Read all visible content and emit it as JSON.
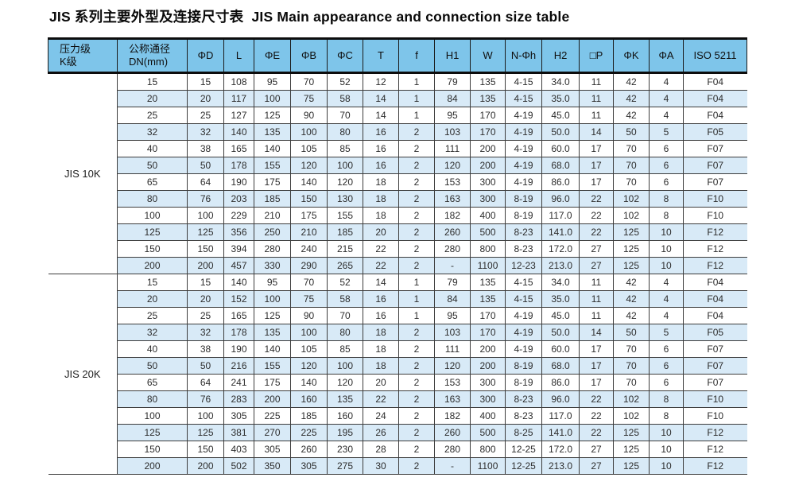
{
  "title": "JIS 系列主要外型及连接尺寸表  JIS Main appearance and connection size table",
  "table": {
    "headers": [
      "压力级\nK级",
      "公称通径\nDN(mm)",
      "ΦD",
      "L",
      "ΦE",
      "ΦB",
      "ΦC",
      "T",
      "f",
      "H1",
      "W",
      "N-Φh",
      "H2",
      "□P",
      "ΦK",
      "ΦA",
      "ISO 5211"
    ],
    "groups": [
      {
        "label": "JIS 10K",
        "rows": [
          [
            "15",
            "15",
            "108",
            "95",
            "70",
            "52",
            "12",
            "1",
            "79",
            "135",
            "4-15",
            "34.0",
            "11",
            "42",
            "4",
            "F04"
          ],
          [
            "20",
            "20",
            "117",
            "100",
            "75",
            "58",
            "14",
            "1",
            "84",
            "135",
            "4-15",
            "35.0",
            "11",
            "42",
            "4",
            "F04"
          ],
          [
            "25",
            "25",
            "127",
            "125",
            "90",
            "70",
            "14",
            "1",
            "95",
            "170",
            "4-19",
            "45.0",
            "11",
            "42",
            "4",
            "F04"
          ],
          [
            "32",
            "32",
            "140",
            "135",
            "100",
            "80",
            "16",
            "2",
            "103",
            "170",
            "4-19",
            "50.0",
            "14",
            "50",
            "5",
            "F05"
          ],
          [
            "40",
            "38",
            "165",
            "140",
            "105",
            "85",
            "16",
            "2",
            "111",
            "200",
            "4-19",
            "60.0",
            "17",
            "70",
            "6",
            "F07"
          ],
          [
            "50",
            "50",
            "178",
            "155",
            "120",
            "100",
            "16",
            "2",
            "120",
            "200",
            "4-19",
            "68.0",
            "17",
            "70",
            "6",
            "F07"
          ],
          [
            "65",
            "64",
            "190",
            "175",
            "140",
            "120",
            "18",
            "2",
            "153",
            "300",
            "4-19",
            "86.0",
            "17",
            "70",
            "6",
            "F07"
          ],
          [
            "80",
            "76",
            "203",
            "185",
            "150",
            "130",
            "18",
            "2",
            "163",
            "300",
            "8-19",
            "96.0",
            "22",
            "102",
            "8",
            "F10"
          ],
          [
            "100",
            "100",
            "229",
            "210",
            "175",
            "155",
            "18",
            "2",
            "182",
            "400",
            "8-19",
            "117.0",
            "22",
            "102",
            "8",
            "F10"
          ],
          [
            "125",
            "125",
            "356",
            "250",
            "210",
            "185",
            "20",
            "2",
            "260",
            "500",
            "8-23",
            "141.0",
            "22",
            "125",
            "10",
            "F12"
          ],
          [
            "150",
            "150",
            "394",
            "280",
            "240",
            "215",
            "22",
            "2",
            "280",
            "800",
            "8-23",
            "172.0",
            "27",
            "125",
            "10",
            "F12"
          ],
          [
            "200",
            "200",
            "457",
            "330",
            "290",
            "265",
            "22",
            "2",
            "-",
            "1100",
            "12-23",
            "213.0",
            "27",
            "125",
            "10",
            "F12"
          ]
        ]
      },
      {
        "label": "JIS 20K",
        "rows": [
          [
            "15",
            "15",
            "140",
            "95",
            "70",
            "52",
            "14",
            "1",
            "79",
            "135",
            "4-15",
            "34.0",
            "11",
            "42",
            "4",
            "F04"
          ],
          [
            "20",
            "20",
            "152",
            "100",
            "75",
            "58",
            "16",
            "1",
            "84",
            "135",
            "4-15",
            "35.0",
            "11",
            "42",
            "4",
            "F04"
          ],
          [
            "25",
            "25",
            "165",
            "125",
            "90",
            "70",
            "16",
            "1",
            "95",
            "170",
            "4-19",
            "45.0",
            "11",
            "42",
            "4",
            "F04"
          ],
          [
            "32",
            "32",
            "178",
            "135",
            "100",
            "80",
            "18",
            "2",
            "103",
            "170",
            "4-19",
            "50.0",
            "14",
            "50",
            "5",
            "F05"
          ],
          [
            "40",
            "38",
            "190",
            "140",
            "105",
            "85",
            "18",
            "2",
            "111",
            "200",
            "4-19",
            "60.0",
            "17",
            "70",
            "6",
            "F07"
          ],
          [
            "50",
            "50",
            "216",
            "155",
            "120",
            "100",
            "18",
            "2",
            "120",
            "200",
            "8-19",
            "68.0",
            "17",
            "70",
            "6",
            "F07"
          ],
          [
            "65",
            "64",
            "241",
            "175",
            "140",
            "120",
            "20",
            "2",
            "153",
            "300",
            "8-19",
            "86.0",
            "17",
            "70",
            "6",
            "F07"
          ],
          [
            "80",
            "76",
            "283",
            "200",
            "160",
            "135",
            "22",
            "2",
            "163",
            "300",
            "8-23",
            "96.0",
            "22",
            "102",
            "8",
            "F10"
          ],
          [
            "100",
            "100",
            "305",
            "225",
            "185",
            "160",
            "24",
            "2",
            "182",
            "400",
            "8-23",
            "117.0",
            "22",
            "102",
            "8",
            "F10"
          ],
          [
            "125",
            "125",
            "381",
            "270",
            "225",
            "195",
            "26",
            "2",
            "260",
            "500",
            "8-25",
            "141.0",
            "22",
            "125",
            "10",
            "F12"
          ],
          [
            "150",
            "150",
            "403",
            "305",
            "260",
            "230",
            "28",
            "2",
            "280",
            "800",
            "12-25",
            "172.0",
            "27",
            "125",
            "10",
            "F12"
          ],
          [
            "200",
            "200",
            "502",
            "350",
            "305",
            "275",
            "30",
            "2",
            "-",
            "1100",
            "12-25",
            "213.0",
            "27",
            "125",
            "10",
            "F12"
          ]
        ]
      }
    ]
  },
  "colors": {
    "header_bg": "#7ec5ea",
    "stripe_bg": "#d8eaf7",
    "thick_border": "#0d0d0d",
    "thin_border": "#3d3d3d"
  }
}
